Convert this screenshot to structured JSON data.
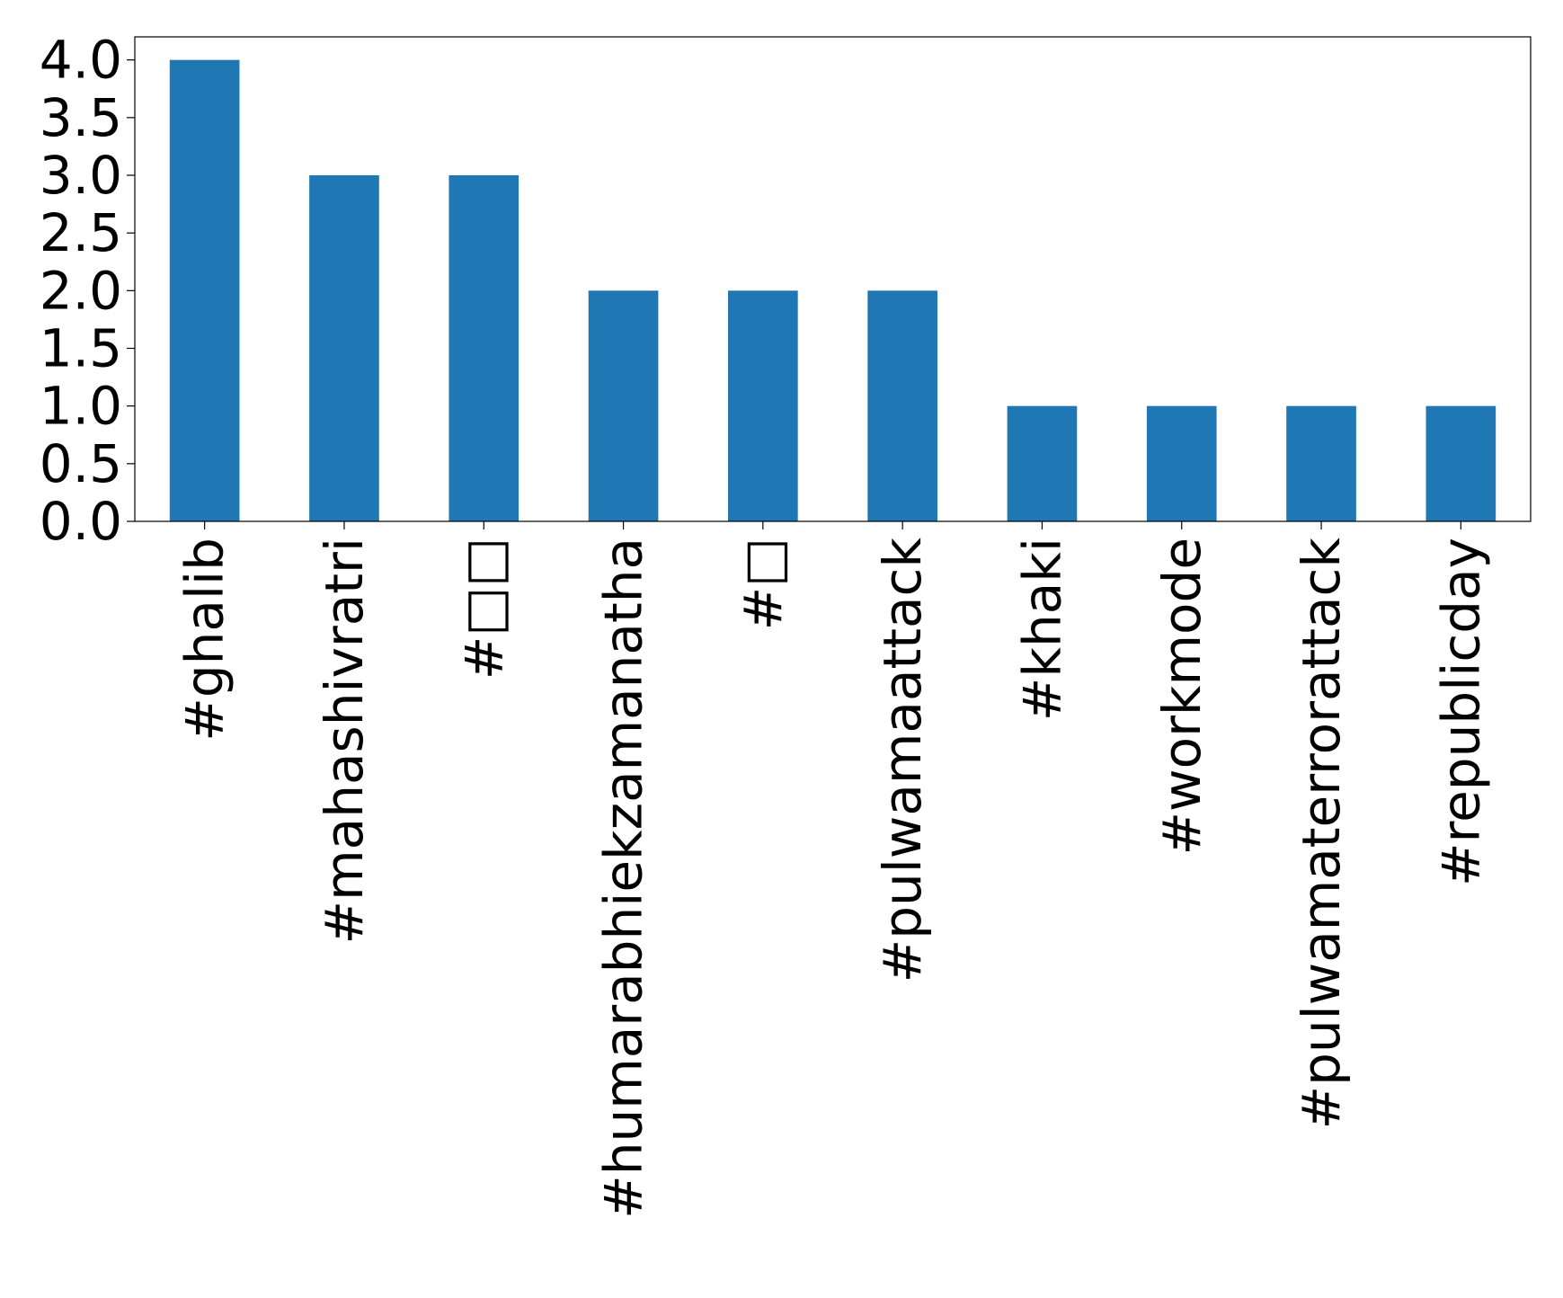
{
  "chart_data": {
    "type": "bar",
    "title": "",
    "xlabel": "",
    "ylabel": "",
    "categories": [
      "#ghalib",
      "#mahashivratri",
      "#□□",
      "#humarabhiekzamanatha",
      "#□",
      "#pulwamaattack",
      "#khaki",
      "#workmode",
      "#pulwamaterrorattack",
      "#republicday"
    ],
    "values": [
      4,
      3,
      3,
      2,
      2,
      2,
      1,
      1,
      1,
      1
    ],
    "ylim": [
      0,
      4.2
    ],
    "yticks": [
      "0.0",
      "0.5",
      "1.0",
      "1.5",
      "2.0",
      "2.5",
      "3.0",
      "3.5",
      "4.0"
    ],
    "grid": false,
    "legend": "none",
    "bar_color": "#1f77b4"
  }
}
